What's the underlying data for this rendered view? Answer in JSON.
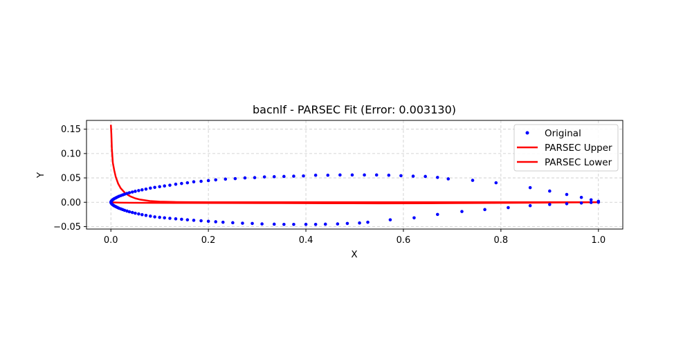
{
  "chart_data": {
    "type": "scatter",
    "title": "bacnlf - PARSEC Fit (Error: 0.003130)",
    "xlabel": "X",
    "ylabel": "Y",
    "xlim": [
      -0.05,
      1.05
    ],
    "ylim": [
      -0.055,
      0.168
    ],
    "xticks": [
      0.0,
      0.2,
      0.4,
      0.6,
      0.8,
      1.0
    ],
    "yticks": [
      -0.05,
      0.0,
      0.05,
      0.1,
      0.15
    ],
    "xtick_labels": [
      "0.0",
      "0.2",
      "0.4",
      "0.6",
      "0.8",
      "1.0"
    ],
    "ytick_labels": [
      "−0.05",
      "0.00",
      "0.05",
      "0.10",
      "0.15"
    ],
    "grid": true,
    "legend_position": "top-right",
    "colors": {
      "original": "#0000ff",
      "parsec": "#ff0000"
    },
    "series": [
      {
        "name": "Original",
        "kind": "points",
        "color": "#0000ff",
        "x": [
          1.0,
          0.985,
          0.965,
          0.935,
          0.9,
          0.86,
          0.79,
          0.742,
          0.692,
          0.67,
          0.645,
          0.62,
          0.595,
          0.57,
          0.545,
          0.52,
          0.495,
          0.47,
          0.445,
          0.42,
          0.395,
          0.375,
          0.355,
          0.335,
          0.315,
          0.295,
          0.275,
          0.255,
          0.235,
          0.215,
          0.2,
          0.185,
          0.17,
          0.157,
          0.145,
          0.133,
          0.121,
          0.11,
          0.1,
          0.09,
          0.081,
          0.072,
          0.064,
          0.057,
          0.05,
          0.044,
          0.038,
          0.033,
          0.028,
          0.024,
          0.02,
          0.016,
          0.013,
          0.01,
          0.007,
          0.005,
          0.003,
          0.0015,
          0.0005,
          0.0,
          0.0005,
          0.0015,
          0.003,
          0.005,
          0.007,
          0.01,
          0.013,
          0.016,
          0.02,
          0.024,
          0.028,
          0.033,
          0.038,
          0.044,
          0.05,
          0.057,
          0.064,
          0.072,
          0.081,
          0.09,
          0.1,
          0.11,
          0.121,
          0.133,
          0.145,
          0.157,
          0.17,
          0.185,
          0.2,
          0.215,
          0.23,
          0.25,
          0.27,
          0.29,
          0.31,
          0.335,
          0.355,
          0.375,
          0.4,
          0.42,
          0.44,
          0.465,
          0.485,
          0.51,
          0.527,
          0.573,
          0.622,
          0.67,
          0.72,
          0.767,
          0.815,
          0.86,
          0.9,
          0.935,
          0.965,
          0.985,
          1.0
        ],
        "y": [
          0.002,
          0.005,
          0.01,
          0.016,
          0.023,
          0.03,
          0.04,
          0.045,
          0.048,
          0.051,
          0.053,
          0.0535,
          0.0545,
          0.0555,
          0.056,
          0.056,
          0.056,
          0.056,
          0.0555,
          0.0555,
          0.054,
          0.0535,
          0.053,
          0.0525,
          0.052,
          0.0505,
          0.05,
          0.0485,
          0.0475,
          0.046,
          0.0445,
          0.043,
          0.042,
          0.04,
          0.0385,
          0.037,
          0.035,
          0.0335,
          0.032,
          0.0305,
          0.029,
          0.027,
          0.0255,
          0.024,
          0.0225,
          0.021,
          0.0195,
          0.018,
          0.0165,
          0.015,
          0.0135,
          0.012,
          0.0105,
          0.009,
          0.0075,
          0.006,
          0.0045,
          0.003,
          0.0015,
          0.0,
          -0.0015,
          -0.003,
          -0.0045,
          -0.006,
          -0.0075,
          -0.009,
          -0.0105,
          -0.012,
          -0.0135,
          -0.015,
          -0.0165,
          -0.018,
          -0.0195,
          -0.021,
          -0.0225,
          -0.024,
          -0.0255,
          -0.027,
          -0.0285,
          -0.03,
          -0.031,
          -0.032,
          -0.033,
          -0.034,
          -0.035,
          -0.036,
          -0.037,
          -0.038,
          -0.039,
          -0.04,
          -0.041,
          -0.042,
          -0.043,
          -0.0435,
          -0.0445,
          -0.045,
          -0.0455,
          -0.0455,
          -0.0455,
          -0.0455,
          -0.045,
          -0.0445,
          -0.0435,
          -0.0425,
          -0.041,
          -0.036,
          -0.032,
          -0.025,
          -0.019,
          -0.015,
          -0.011,
          -0.007,
          -0.0045,
          -0.003,
          -0.0015,
          -0.0005,
          0.0
        ]
      },
      {
        "name": "PARSEC Upper",
        "kind": "line",
        "color": "#ff0000",
        "x": [
          0.0,
          0.001,
          0.002,
          0.004,
          0.007,
          0.01,
          0.015,
          0.02,
          0.03,
          0.04,
          0.05,
          0.06,
          0.08,
          0.1,
          0.13,
          0.16,
          0.2,
          0.25,
          0.3,
          0.4,
          0.5,
          0.6,
          0.7,
          0.8,
          0.9,
          0.95,
          1.0
        ],
        "y": [
          0.159,
          0.14,
          0.11,
          0.081,
          0.065,
          0.052,
          0.038,
          0.029,
          0.018,
          0.012,
          0.008,
          0.0055,
          0.0025,
          0.0012,
          0.0005,
          0.0002,
          0.0001,
          0.0,
          0.0,
          0.0,
          0.0,
          0.0,
          0.0,
          0.0,
          0.0,
          0.0,
          0.0
        ]
      },
      {
        "name": "PARSEC Lower",
        "kind": "line",
        "color": "#ff0000",
        "x": [
          0.0,
          0.005,
          0.01,
          0.02,
          0.04,
          0.08,
          0.15,
          0.25,
          0.35,
          0.45,
          0.55,
          0.65,
          0.75,
          0.85,
          0.95,
          1.0
        ],
        "y": [
          0.0,
          -0.0003,
          -0.0005,
          -0.0008,
          -0.001,
          -0.0012,
          -0.0014,
          -0.0016,
          -0.0018,
          -0.002,
          -0.0022,
          -0.002,
          -0.0015,
          -0.001,
          -0.0004,
          0.0
        ]
      }
    ]
  }
}
